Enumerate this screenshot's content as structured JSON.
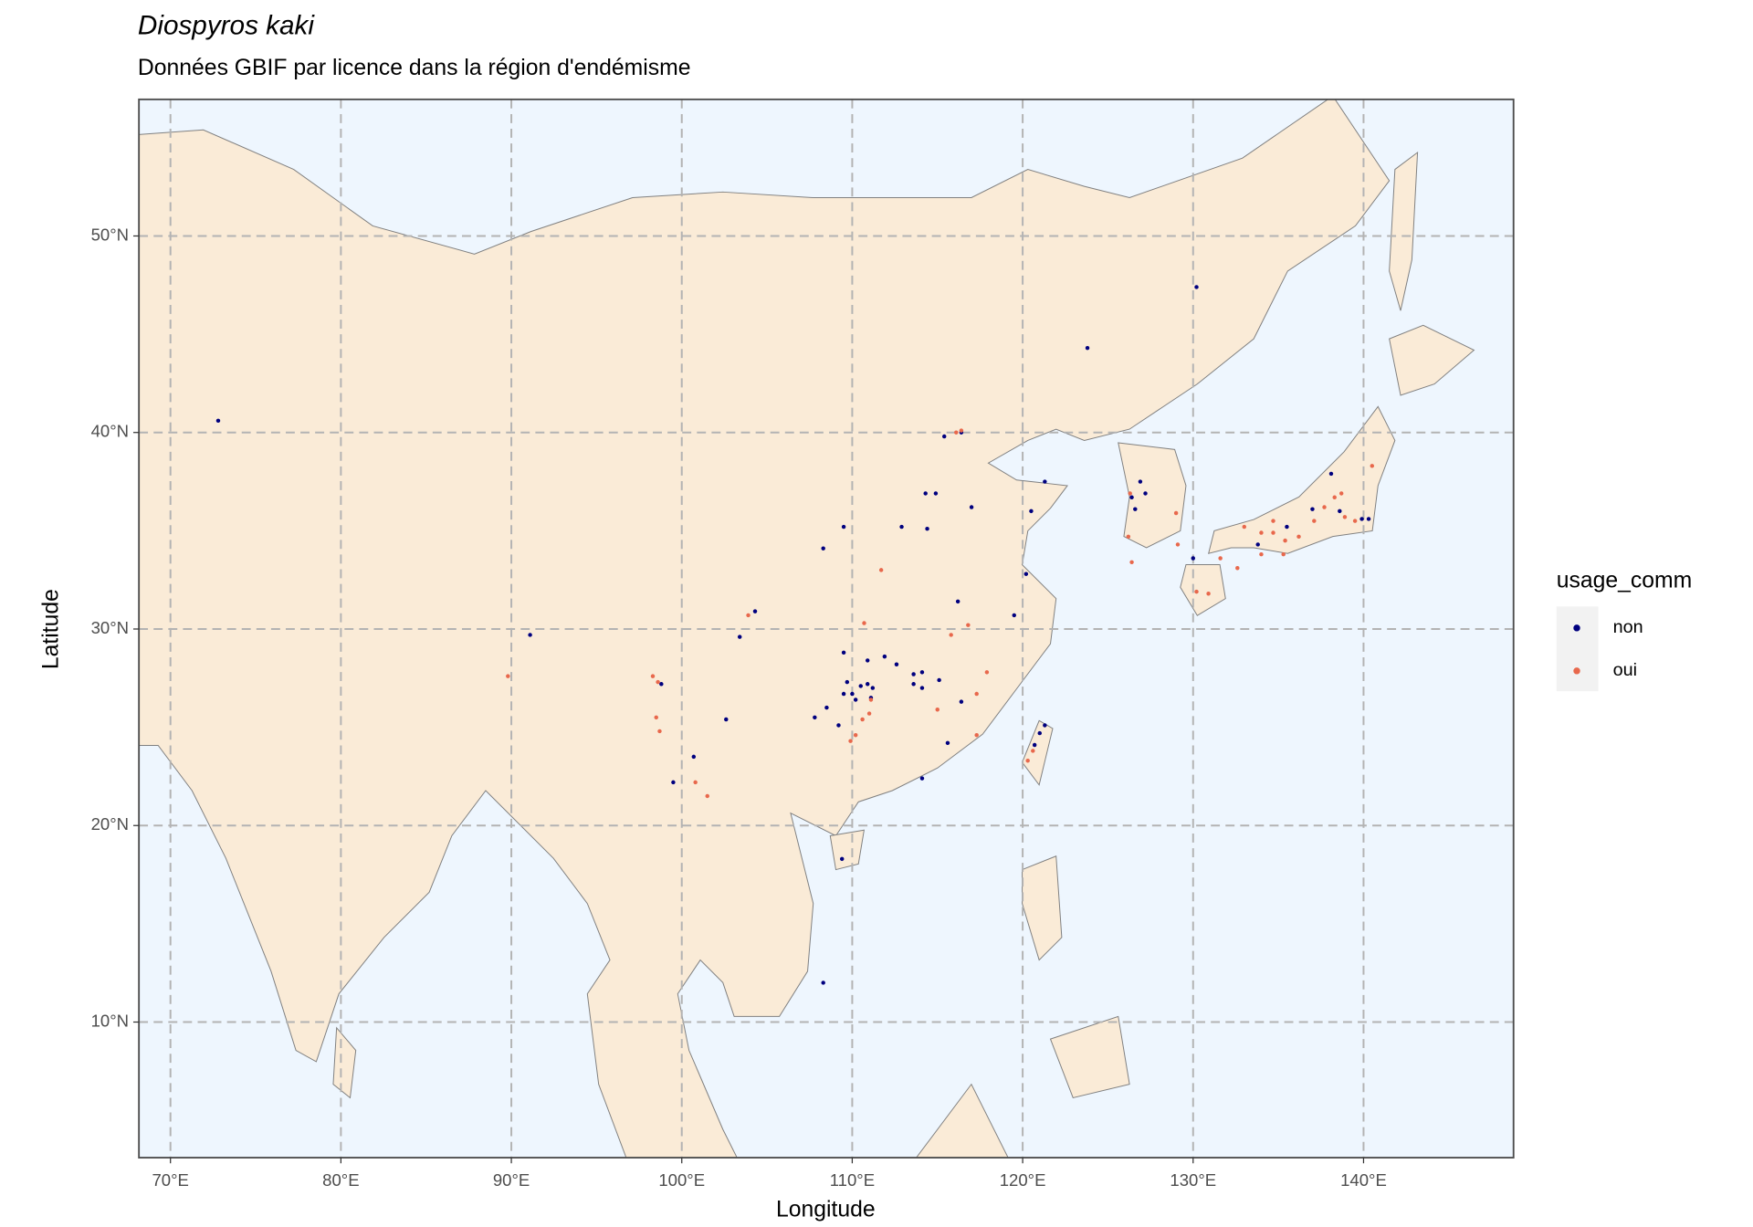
{
  "chart_data": {
    "type": "scatter",
    "title": "Diospyros kaki",
    "subtitle": "Données GBIF par licence dans la région d'endémisme",
    "xlabel": "Longitude",
    "ylabel": "Latitude",
    "legend_title": "usage_comm",
    "legend": "right",
    "grid": true,
    "xlim": [
      68.15,
      148.8
    ],
    "ylim": [
      3.1,
      56.95
    ],
    "xticks": [
      {
        "value": 70,
        "label": "70°E"
      },
      {
        "value": 80,
        "label": "80°E"
      },
      {
        "value": 90,
        "label": "90°E"
      },
      {
        "value": 100,
        "label": "100°E"
      },
      {
        "value": 110,
        "label": "110°E"
      },
      {
        "value": 120,
        "label": "120°E"
      },
      {
        "value": 130,
        "label": "130°E"
      },
      {
        "value": 140,
        "label": "140°E"
      }
    ],
    "yticks": [
      {
        "value": 10,
        "label": "10°N"
      },
      {
        "value": 20,
        "label": "20°N"
      },
      {
        "value": 30,
        "label": "30°N"
      },
      {
        "value": 40,
        "label": "40°N"
      },
      {
        "value": 50,
        "label": "50°N"
      }
    ],
    "series": [
      {
        "name": "non",
        "color": "#00007f",
        "x": [
          72.8,
          130.2,
          123.8,
          115.4,
          116.4,
          121.3,
          120.5,
          117.0,
          114.3,
          114.9,
          112.9,
          114.4,
          109.5,
          108.3,
          104.3,
          103.4,
          91.1,
          116.2,
          120.2,
          119.5,
          109.5,
          110.9,
          111.9,
          112.6,
          113.6,
          114.1,
          113.6,
          114.1,
          115.1,
          116.4,
          109.7,
          110.5,
          110.9,
          111.2,
          110.0,
          109.5,
          110.2,
          111.1,
          108.5,
          107.8,
          109.2,
          102.6,
          98.8,
          100.7,
          99.5,
          115.6,
          114.1,
          109.4,
          108.3,
          126.4,
          126.9,
          126.6,
          127.2,
          130.0,
          138.1,
          137.0,
          138.6,
          139.9,
          140.3,
          135.5,
          133.8,
          121.3,
          121.0,
          120.7
        ],
        "y": [
          40.6,
          47.4,
          44.3,
          39.8,
          40.0,
          37.5,
          36.0,
          36.2,
          36.9,
          36.9,
          35.2,
          35.1,
          35.2,
          34.1,
          30.9,
          29.6,
          29.7,
          31.4,
          32.8,
          30.7,
          28.8,
          28.4,
          28.6,
          28.2,
          27.7,
          27.8,
          27.2,
          27.0,
          27.4,
          26.3,
          27.3,
          27.1,
          27.2,
          27.0,
          26.7,
          26.7,
          26.4,
          26.5,
          26.0,
          25.5,
          25.1,
          25.4,
          27.2,
          23.5,
          22.2,
          24.2,
          22.4,
          18.3,
          12.0,
          36.7,
          37.5,
          36.1,
          36.9,
          33.6,
          37.9,
          36.1,
          36.0,
          35.6,
          35.6,
          35.2,
          34.3,
          25.1,
          24.7,
          24.1
        ]
      },
      {
        "name": "oui",
        "color": "#e8684c",
        "x": [
          116.4,
          116.1,
          111.7,
          103.9,
          110.7,
          116.8,
          115.8,
          117.9,
          117.3,
          115.0,
          89.8,
          98.3,
          98.6,
          98.5,
          98.7,
          111.1,
          111.0,
          110.6,
          110.2,
          109.9,
          100.8,
          101.5,
          117.3,
          126.3,
          126.2,
          126.4,
          129.0,
          129.1,
          130.9,
          130.2,
          133.0,
          134.0,
          134.7,
          135.4,
          136.2,
          137.1,
          137.7,
          138.3,
          138.9,
          139.5,
          140.5,
          138.7,
          131.6,
          132.6,
          134.0,
          135.3,
          120.6,
          120.3,
          134.7
        ],
        "y": [
          40.1,
          40.0,
          33.0,
          30.7,
          30.3,
          30.2,
          29.7,
          27.8,
          26.7,
          25.9,
          27.6,
          27.6,
          27.3,
          25.5,
          24.8,
          26.4,
          25.7,
          25.4,
          24.6,
          24.3,
          22.2,
          21.5,
          24.6,
          36.9,
          34.7,
          33.4,
          35.9,
          34.3,
          31.8,
          31.9,
          35.2,
          34.9,
          34.9,
          34.5,
          34.7,
          35.5,
          36.2,
          36.7,
          35.7,
          35.5,
          38.3,
          36.9,
          33.6,
          33.1,
          33.8,
          33.8,
          23.8,
          23.3,
          35.5
        ]
      }
    ]
  }
}
